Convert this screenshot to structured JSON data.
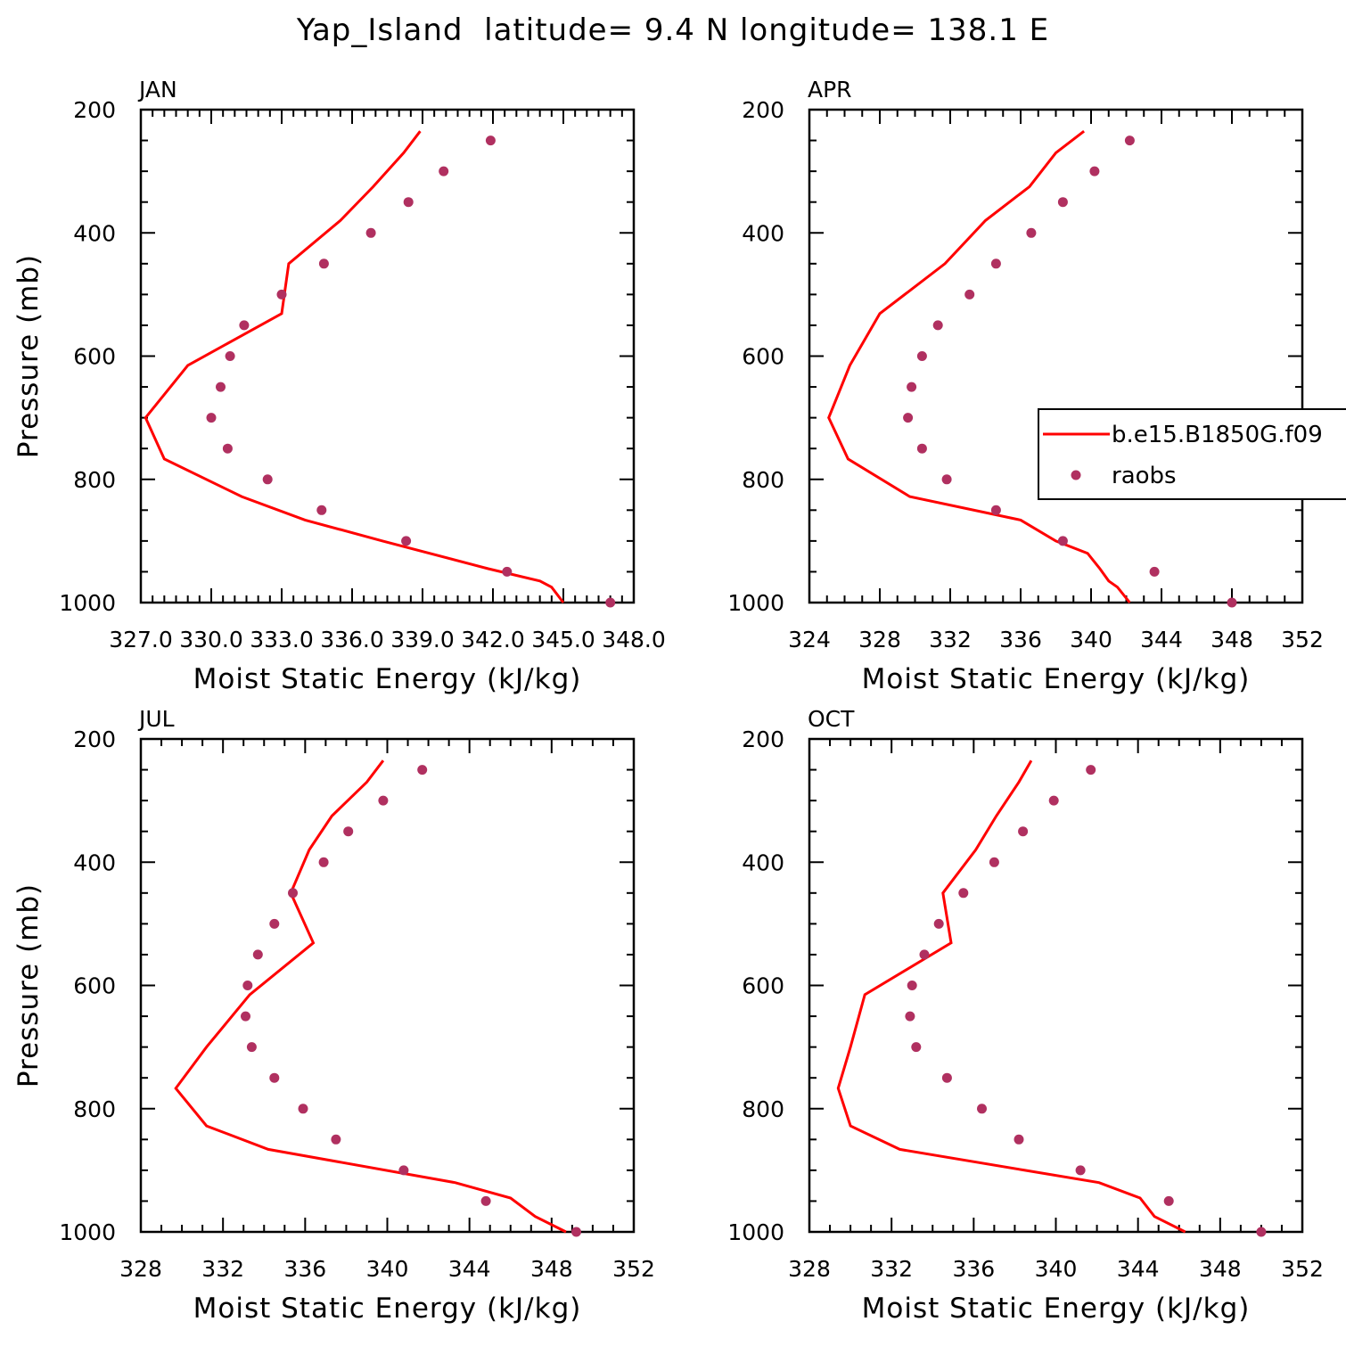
{
  "title": "Yap_Island  latitude= 9.4 N longitude= 138.1 E",
  "colors": {
    "model": "#ff0000",
    "obs": "#b03060",
    "axis": "#000000"
  },
  "legend": {
    "placement": "right of APR panel",
    "entries": [
      {
        "label": "b.e15.B1850G.f09",
        "style": "line"
      },
      {
        "label": "raobs",
        "style": "marker"
      }
    ]
  },
  "chart_data": [
    {
      "type": "line",
      "panel": "JAN",
      "xlabel": "Moist Static Energy (kJ/kg)",
      "ylabel": "Pressure (mb)",
      "xlim": [
        327.0,
        348.0
      ],
      "ylim": [
        1000,
        200
      ],
      "x_ticks": [
        327,
        330,
        333,
        336,
        339,
        342,
        345,
        348
      ],
      "x_tick_labels": [
        "327.0",
        "330.0",
        "333.0",
        "336.0",
        "339.0",
        "342.0",
        "345.0",
        "348.0"
      ],
      "y_ticks": [
        200,
        400,
        600,
        800,
        1000
      ],
      "series": [
        {
          "name": "b.e15.B1850G.f09",
          "style": "line",
          "pressure": [
            1000,
            975,
            965,
            945,
            900,
            866,
            828,
            767,
            700,
            615,
            531,
            450,
            380,
            325,
            270,
            235
          ],
          "values": [
            345.0,
            344.5,
            344.0,
            341.8,
            337.3,
            334.0,
            331.3,
            328.0,
            327.2,
            329.0,
            333.0,
            333.3,
            335.5,
            336.9,
            338.2,
            338.9
          ]
        },
        {
          "name": "raobs",
          "style": "marker",
          "pressure": [
            1000,
            950,
            900,
            850,
            800,
            750,
            700,
            650,
            600,
            550,
            500,
            450,
            400,
            350,
            300,
            250
          ],
          "values": [
            347.0,
            342.6,
            338.3,
            334.7,
            332.4,
            330.7,
            330.0,
            330.4,
            330.8,
            331.4,
            333.0,
            334.8,
            336.8,
            338.4,
            339.9,
            341.9
          ]
        }
      ]
    },
    {
      "type": "line",
      "panel": "APR",
      "xlabel": "Moist Static Energy (kJ/kg)",
      "ylabel": "",
      "xlim": [
        324,
        352
      ],
      "ylim": [
        1000,
        200
      ],
      "x_ticks": [
        324,
        328,
        332,
        336,
        340,
        344,
        348,
        352
      ],
      "x_tick_labels": [
        "324",
        "328",
        "332",
        "336",
        "340",
        "344",
        "348",
        "352"
      ],
      "y_ticks": [
        200,
        400,
        600,
        800,
        1000
      ],
      "series": [
        {
          "name": "b.e15.B1850G.f09",
          "style": "line",
          "pressure": [
            1000,
            975,
            965,
            945,
            920,
            900,
            866,
            828,
            767,
            700,
            615,
            531,
            450,
            380,
            325,
            270,
            235
          ],
          "values": [
            342.2,
            341.5,
            341.0,
            340.5,
            339.8,
            338.0,
            336.0,
            329.7,
            326.2,
            325.1,
            326.3,
            328.0,
            331.7,
            334.0,
            336.5,
            338.0,
            339.6
          ]
        },
        {
          "name": "raobs",
          "style": "marker",
          "pressure": [
            1000,
            950,
            900,
            850,
            800,
            750,
            700,
            650,
            600,
            550,
            500,
            450,
            400,
            350,
            300,
            250
          ],
          "values": [
            348.0,
            343.6,
            338.4,
            334.6,
            331.8,
            330.4,
            329.6,
            329.8,
            330.4,
            331.3,
            333.1,
            334.6,
            336.6,
            338.4,
            340.2,
            342.2
          ]
        }
      ]
    },
    {
      "type": "line",
      "panel": "JUL",
      "xlabel": "Moist Static Energy (kJ/kg)",
      "ylabel": "Pressure (mb)",
      "xlim": [
        328,
        352
      ],
      "ylim": [
        1000,
        200
      ],
      "x_ticks": [
        328,
        332,
        336,
        340,
        344,
        348,
        352
      ],
      "x_tick_labels": [
        "328",
        "332",
        "336",
        "340",
        "344",
        "348",
        "352"
      ],
      "y_ticks": [
        200,
        400,
        600,
        800,
        1000
      ],
      "series": [
        {
          "name": "b.e15.B1850G.f09",
          "style": "line",
          "pressure": [
            1000,
            975,
            945,
            920,
            866,
            828,
            767,
            700,
            615,
            531,
            450,
            380,
            325,
            270,
            235
          ],
          "values": [
            348.7,
            347.2,
            346.0,
            343.3,
            334.2,
            331.2,
            329.7,
            331.2,
            333.3,
            336.4,
            335.3,
            336.2,
            337.3,
            339.0,
            339.8
          ]
        },
        {
          "name": "raobs",
          "style": "marker",
          "pressure": [
            1000,
            950,
            900,
            850,
            800,
            750,
            700,
            650,
            600,
            550,
            500,
            450,
            400,
            350,
            300,
            250
          ],
          "values": [
            349.2,
            344.8,
            340.8,
            337.5,
            335.9,
            334.5,
            333.4,
            333.1,
            333.2,
            333.7,
            334.5,
            335.4,
            336.9,
            338.1,
            339.8,
            341.7
          ]
        }
      ]
    },
    {
      "type": "line",
      "panel": "OCT",
      "xlabel": "Moist Static Energy (kJ/kg)",
      "ylabel": "",
      "xlim": [
        328,
        352
      ],
      "ylim": [
        1000,
        200
      ],
      "x_ticks": [
        328,
        332,
        336,
        340,
        344,
        348,
        352
      ],
      "x_tick_labels": [
        "328",
        "332",
        "336",
        "340",
        "344",
        "348",
        "352"
      ],
      "y_ticks": [
        200,
        400,
        600,
        800,
        1000
      ],
      "series": [
        {
          "name": "b.e15.B1850G.f09",
          "style": "line",
          "pressure": [
            1000,
            975,
            945,
            920,
            900,
            866,
            828,
            767,
            700,
            615,
            531,
            450,
            380,
            325,
            270,
            235
          ],
          "values": [
            346.3,
            344.8,
            344.1,
            342.1,
            338.5,
            332.4,
            330.0,
            329.4,
            330.0,
            330.7,
            334.9,
            334.5,
            336.1,
            337.1,
            338.2,
            338.8
          ]
        },
        {
          "name": "raobs",
          "style": "marker",
          "pressure": [
            1000,
            950,
            900,
            850,
            800,
            750,
            700,
            650,
            600,
            550,
            500,
            450,
            400,
            350,
            300,
            250
          ],
          "values": [
            350.0,
            345.5,
            341.2,
            338.2,
            336.4,
            334.7,
            333.2,
            332.9,
            333.0,
            333.6,
            334.3,
            335.5,
            337.0,
            338.4,
            339.9,
            341.7
          ]
        }
      ]
    }
  ]
}
